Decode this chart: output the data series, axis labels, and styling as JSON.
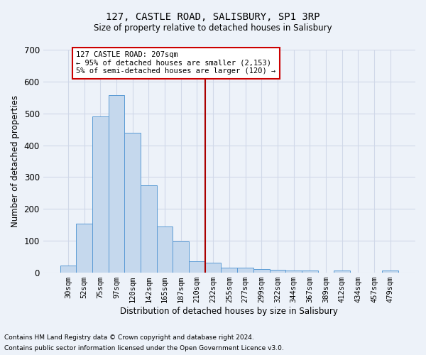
{
  "title": "127, CASTLE ROAD, SALISBURY, SP1 3RP",
  "subtitle": "Size of property relative to detached houses in Salisbury",
  "xlabel": "Distribution of detached houses by size in Salisbury",
  "ylabel": "Number of detached properties",
  "footnote1": "Contains HM Land Registry data © Crown copyright and database right 2024.",
  "footnote2": "Contains public sector information licensed under the Open Government Licence v3.0.",
  "bar_labels": [
    "30sqm",
    "52sqm",
    "75sqm",
    "97sqm",
    "120sqm",
    "142sqm",
    "165sqm",
    "187sqm",
    "210sqm",
    "232sqm",
    "255sqm",
    "277sqm",
    "299sqm",
    "322sqm",
    "344sqm",
    "367sqm",
    "389sqm",
    "412sqm",
    "434sqm",
    "457sqm",
    "479sqm"
  ],
  "bar_values": [
    22,
    155,
    490,
    558,
    440,
    275,
    145,
    98,
    35,
    32,
    15,
    15,
    12,
    8,
    7,
    6,
    0,
    6,
    0,
    0,
    7
  ],
  "bar_color": "#c5d8ed",
  "bar_edge_color": "#5b9bd5",
  "grid_color": "#d0d8e8",
  "bg_color": "#edf2f9",
  "vline_color": "#aa0000",
  "annotation_line1": "127 CASTLE ROAD: 207sqm",
  "annotation_line2": "← 95% of detached houses are smaller (2,153)",
  "annotation_line3": "5% of semi-detached houses are larger (120) →",
  "annotation_box_color": "#ffffff",
  "annotation_box_edge": "#cc0000",
  "ylim": [
    0,
    700
  ],
  "yticks": [
    0,
    100,
    200,
    300,
    400,
    500,
    600,
    700
  ]
}
